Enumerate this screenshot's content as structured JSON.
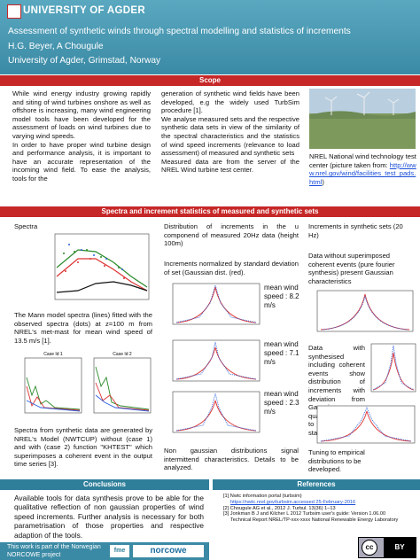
{
  "header": {
    "logo": "UNIVERSITY OF AGDER",
    "title": "Assessment of synthetic winds through spectral modelling and statistics of increments",
    "authors": "H.G. Beyer, A Chougule",
    "affiliation": "University of Agder, Grimstad, Norway"
  },
  "scope": {
    "heading": "Scope",
    "col1": [
      "While wind energy industry growing rapidly and siting of wind turbines onshore as well as offshore is increasing, many wind engineering model tools have been developed for the assessment of loads on wind turbines due to varying wind speeds.",
      "In order to have proper wind turbine design and performance analysis, it is important to have an accurate representation of the incoming wind field. To ease the analysis, tools for the"
    ],
    "col2": [
      "generation of synthetic wind fields have been developed, e.g the widely used TurbSim procedure [1].",
      "We analyse measured sets and the respective synthetic data sets in view of the similarity of the spectral characteristics and the statistics of wind speed increments (relevance to load assessment) of measured and synthetic sets",
      "Measured data are from the server of the NREL Wind turbine test center."
    ],
    "caption": "NREL National wind technology test center (picture taken from:",
    "link": "http://www.nrel.gov/wind/facilities_test_pads.html",
    "caption_end": ")"
  },
  "results": {
    "heading": "Spectra and increment statistics of measured and synthetic sets",
    "col1": {
      "title": "Spectra",
      "text1": "The Mann model spectra (lines) fitted with the observed spectra (dots) at z=100 m from NREL's met-mast for mean wind speed of 13.5 m/s [1].",
      "case1": "Case Id 1",
      "case2": "Case Id 2",
      "text2": "Spectra from synthetic data are generated by NREL's Model (NWTCUP) without (case 1) and with (case 2) function \"KHTEST\" which superimposes a coherent event in the output time series [3]."
    },
    "col2": {
      "text1": "Distribution of increments in the u componend of measured 20Hz data (height 100m)",
      "text2": "Increments normalized by standard deviation of set (Gaussian dist. (red).",
      "labels": [
        "mean wind speed : 8.2 m/s",
        "mean wind speed : 7.1 m/s",
        "mean wind speed : 2.3 m/s"
      ],
      "text3": "Non gaussian distributions signal intermittend characteristics. Details to be analyzed."
    },
    "col3": {
      "text1": "Increments in synthetic sets (20 Hz)",
      "text2": "Data without superimposed coherent events (pure fourier synthesis) present Gaussian characteristics",
      "text3": "Data with synthesised including coherent events show distribution of increments with deviation from Gaussian qualitatively similar to ← 'real' statistics",
      "text4": "Tuning to empirical distributions to be developed."
    }
  },
  "conclusions": {
    "heading": "Conclusions",
    "text": "Available tools for data synthesis prove to be able for the qualitative reflection of non gaussian properties of wind speed increments. Further analysis is necessary for both parametrisation of those properties and respective adaption of the tools."
  },
  "footer": {
    "text": "This work is part of the Norwegian NORCOWE project",
    "logo1": "fme",
    "logo2": "norcowe"
  },
  "references": {
    "heading": "References",
    "items": [
      "[1] Nwtc information portal (turbsim)",
      "https://nwtc.nrel.gov/turbsim.accessed 25-February-2016",
      "[2] Chougule AG et al., 2012 J. Turbul. 13(36) 1–13",
      "[3] Jonkman B J and Kilcher L 2012 Turbsim user's guide: Version 1.06.00 Technical Report NREL/TP-xxx-xxxx National Renewable Energy Laboratory"
    ],
    "cc": "cc",
    "by": "BY"
  }
}
